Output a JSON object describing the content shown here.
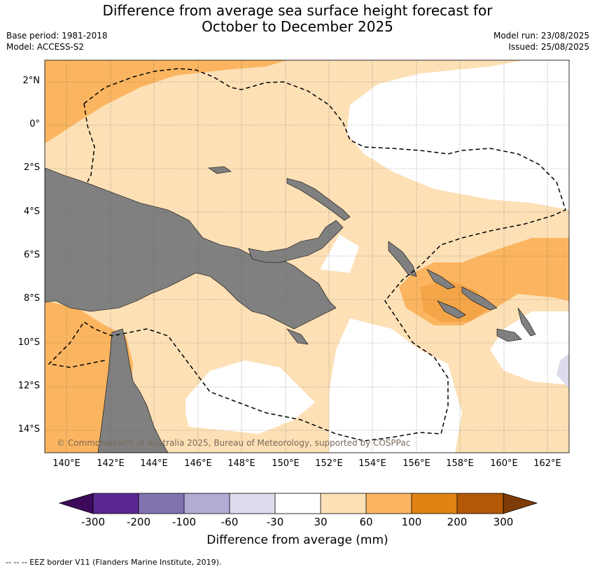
{
  "title_line1": "Difference from average sea surface height forecast for",
  "title_line2": "October to December 2025",
  "meta_left": [
    "Base period: 1981-2018",
    "Model: ACCESS-S2"
  ],
  "meta_right": [
    "Model run: 23/08/2025",
    "Issued: 25/08/2025"
  ],
  "lat_labels": [
    "2°N",
    "0°",
    "2°S",
    "4°S",
    "6°S",
    "8°S",
    "10°S",
    "12°S",
    "14°S"
  ],
  "lon_labels": [
    "140°E",
    "142°E",
    "144°E",
    "146°E",
    "148°E",
    "150°E",
    "152°E",
    "154°E",
    "156°E",
    "158°E",
    "160°E",
    "162°E"
  ],
  "copyright": "© Commonwealth of Australia 2025, Bureau of Meteorology, supported by COSPPac",
  "colorbar": {
    "title": "Difference from average (mm)",
    "tick_labels": [
      "-300",
      "-200",
      "-100",
      "-60",
      "-30",
      "30",
      "60",
      "100",
      "200",
      "300"
    ],
    "colors": [
      "#3d0a5b",
      "#5a2890",
      "#8272b0",
      "#b3abd3",
      "#dcdcec",
      "#ffffff",
      "#fde0b6",
      "#fbb560",
      "#e08214",
      "#b35806",
      "#7f3b08"
    ]
  },
  "legend_colors": {
    "light_orange": "#fde0b6",
    "orange": "#fbb560",
    "dark_orange": "#f4a548",
    "white": "#ffffff",
    "lavender": "#dcdcec",
    "land": "#808080"
  },
  "footer": "--  --  -- EEZ border V11 (Flanders Marine Institute, 2019)."
}
